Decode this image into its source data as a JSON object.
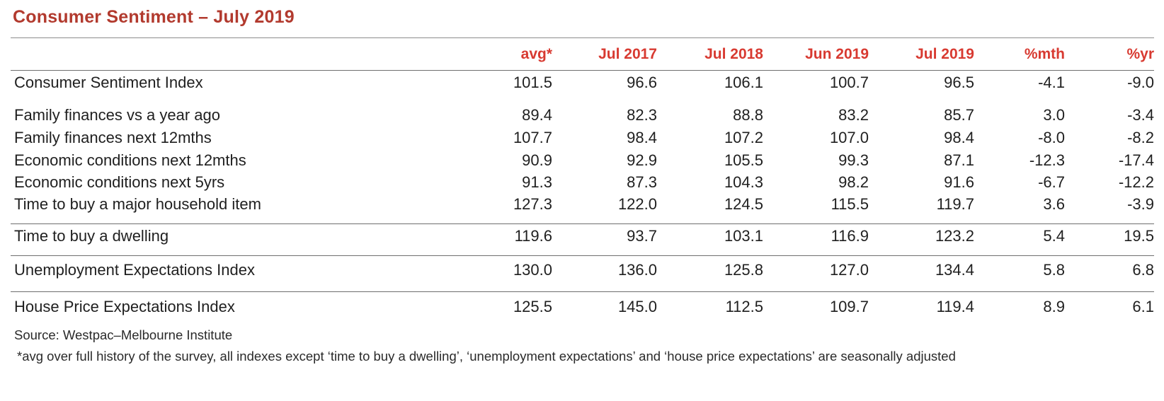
{
  "title": "Consumer Sentiment – July 2019",
  "columns": [
    "avg*",
    "Jul 2017",
    "Jul 2018",
    "Jun 2019",
    "Jul 2019",
    "%mth",
    "%yr"
  ],
  "rows": [
    {
      "label": "Consumer Sentiment Index",
      "values": [
        "101.5",
        "96.6",
        "106.1",
        "100.7",
        "96.5",
        "-4.1",
        "-9.0"
      ]
    },
    {
      "label": "Family finances vs a year ago",
      "values": [
        "89.4",
        "82.3",
        "88.8",
        "83.2",
        "85.7",
        "3.0",
        "-3.4"
      ]
    },
    {
      "label": "Family finances next 12mths",
      "values": [
        "107.7",
        "98.4",
        "107.2",
        "107.0",
        "98.4",
        "-8.0",
        "-8.2"
      ]
    },
    {
      "label": "Economic conditions next 12mths",
      "values": [
        "90.9",
        "92.9",
        "105.5",
        "99.3",
        "87.1",
        "-12.3",
        "-17.4"
      ]
    },
    {
      "label": "Economic conditions next 5yrs",
      "values": [
        "91.3",
        "87.3",
        "104.3",
        "98.2",
        "91.6",
        "-6.7",
        "-12.2"
      ]
    },
    {
      "label": "Time to buy a major household item",
      "values": [
        "127.3",
        "122.0",
        "124.5",
        "115.5",
        "119.7",
        "3.6",
        "-3.9"
      ]
    },
    {
      "label": "Time to buy a dwelling",
      "values": [
        "119.6",
        "93.7",
        "103.1",
        "116.9",
        "123.2",
        "5.4",
        "19.5"
      ]
    },
    {
      "label": "Unemployment Expectations Index",
      "values": [
        "130.0",
        "136.0",
        "125.8",
        "127.0",
        "134.4",
        "5.8",
        "6.8"
      ]
    },
    {
      "label": "House Price Expectations Index",
      "values": [
        "125.5",
        "145.0",
        "112.5",
        "109.7",
        "119.4",
        "8.9",
        "6.1"
      ]
    }
  ],
  "source": "Source: Westpac–Melbourne Institute",
  "footnote": "*avg over full history of the survey, all indexes except ‘time to buy a dwelling’, ‘unemployment expectations’ and ‘house price expectations’ are seasonally adjusted"
}
